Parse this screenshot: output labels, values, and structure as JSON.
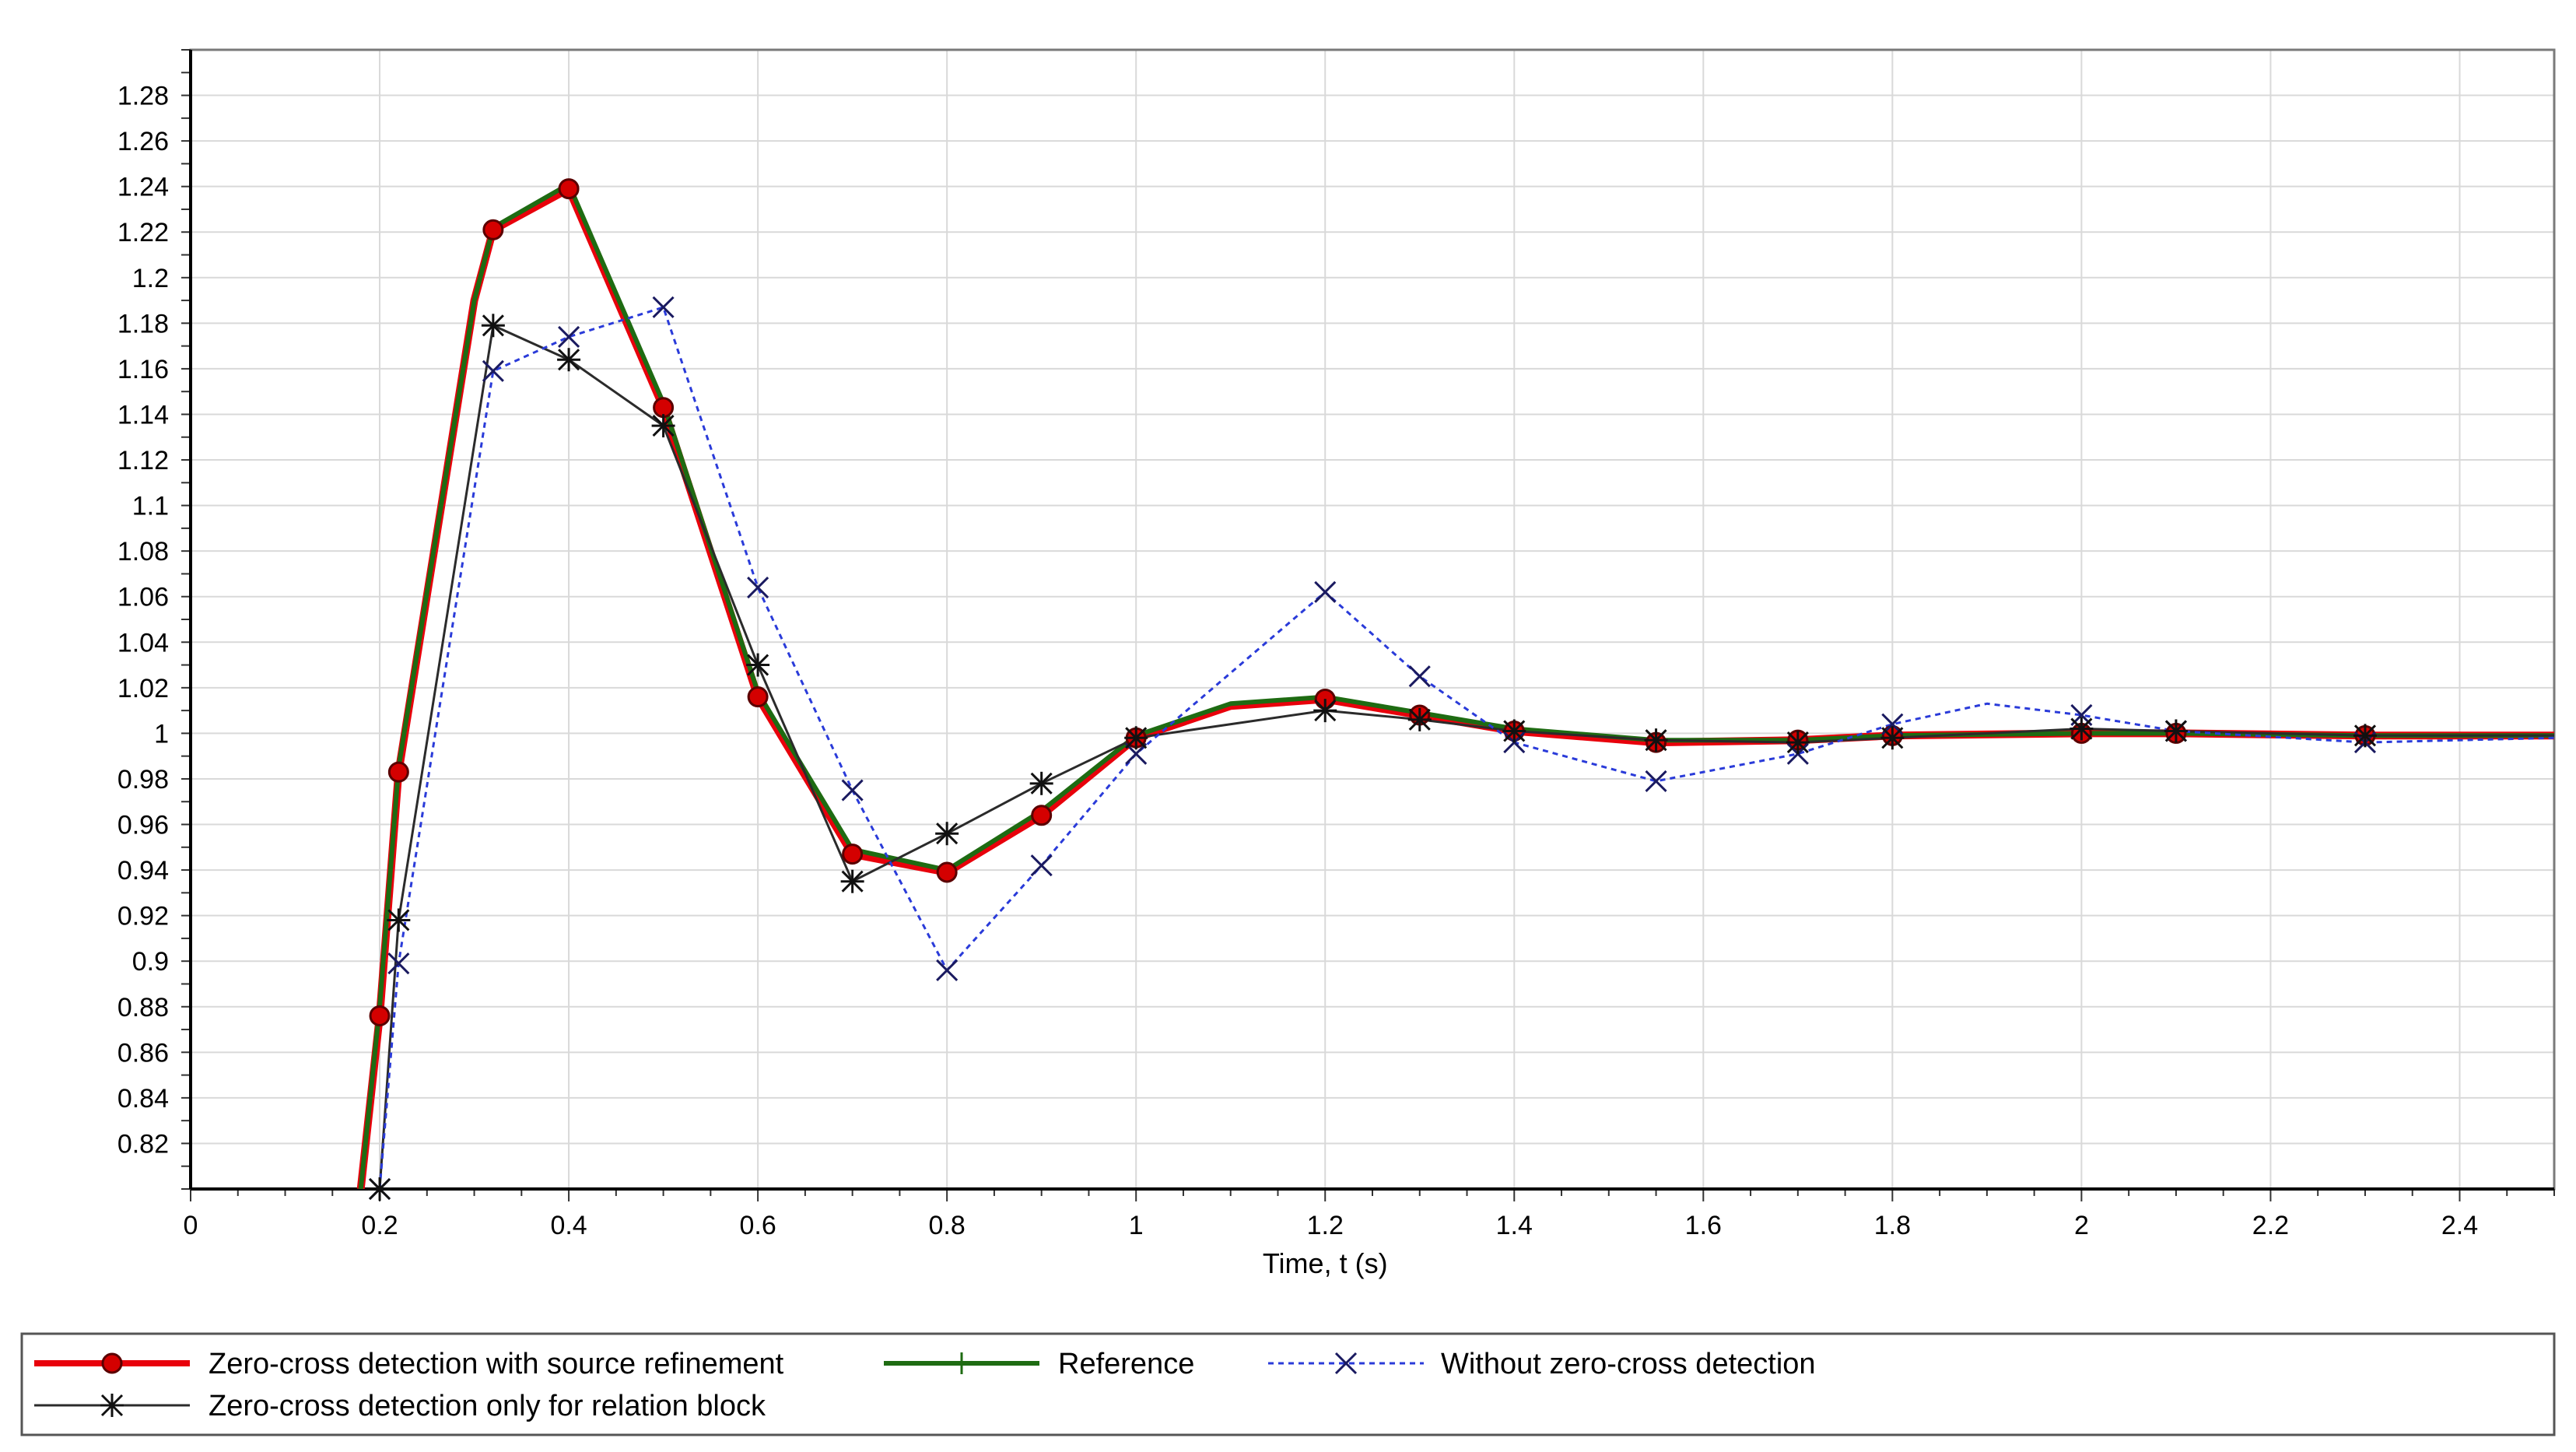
{
  "chart_data": {
    "type": "line",
    "title": "",
    "xlabel": "Time, t (s)",
    "ylabel": "",
    "xlim": [
      0,
      2.5
    ],
    "ylim": [
      0.8,
      1.3
    ],
    "xticks": [
      "0",
      "0.2",
      "0.4",
      "0.6",
      "0.8",
      "1",
      "1.2",
      "1.4",
      "1.6",
      "1.8",
      "2",
      "2.2",
      "2.4"
    ],
    "xtick_values": [
      0,
      0.2,
      0.4,
      0.6,
      0.8,
      1,
      1.2,
      1.4,
      1.6,
      1.8,
      2,
      2.2,
      2.4
    ],
    "yticks": [
      "0.82",
      "0.84",
      "0.86",
      "0.88",
      "0.9",
      "0.92",
      "0.94",
      "0.96",
      "0.98",
      "1",
      "1.02",
      "1.04",
      "1.06",
      "1.08",
      "1.1",
      "1.12",
      "1.14",
      "1.16",
      "1.18",
      "1.2",
      "1.22",
      "1.24",
      "1.26",
      "1.28"
    ],
    "ytick_values": [
      0.82,
      0.84,
      0.86,
      0.88,
      0.9,
      0.92,
      0.94,
      0.96,
      0.98,
      1,
      1.02,
      1.04,
      1.06,
      1.08,
      1.1,
      1.12,
      1.14,
      1.16,
      1.18,
      1.2,
      1.22,
      1.24,
      1.26,
      1.28
    ],
    "grid": true,
    "legend_placement": "bottom",
    "series": [
      {
        "name": "Zero-cross detection with source refinement",
        "color": "#e8000b",
        "marker": "circle",
        "dash": "solid",
        "x": [
          0.18,
          0.2,
          0.22,
          0.3,
          0.32,
          0.4,
          0.5,
          0.6,
          0.7,
          0.8,
          0.9,
          1.0,
          1.1,
          1.2,
          1.3,
          1.4,
          1.55,
          1.7,
          1.8,
          2.0,
          2.1,
          2.3,
          2.5
        ],
        "y": [
          0.8,
          0.876,
          0.983,
          1.19,
          1.221,
          1.239,
          1.143,
          1.016,
          0.947,
          0.939,
          0.964,
          0.998,
          1.012,
          1.015,
          1.008,
          1.001,
          0.996,
          0.997,
          0.999,
          1.0,
          1.0,
          0.999,
          0.999
        ],
        "marker_x": [
          0.2,
          0.22,
          0.32,
          0.4,
          0.5,
          0.6,
          0.7,
          0.8,
          0.9,
          1.0,
          1.2,
          1.3,
          1.4,
          1.55,
          1.7,
          1.8,
          2.0,
          2.1,
          2.3
        ],
        "marker_y": [
          0.876,
          0.983,
          1.221,
          1.239,
          1.143,
          1.016,
          0.947,
          0.939,
          0.964,
          0.998,
          1.015,
          1.008,
          1.001,
          0.996,
          0.997,
          0.999,
          1.0,
          1.0,
          0.999
        ]
      },
      {
        "name": "Reference",
        "color": "#1e6b12",
        "marker": "plus",
        "dash": "solid",
        "x": [
          0.18,
          0.2,
          0.22,
          0.3,
          0.32,
          0.4,
          0.5,
          0.6,
          0.7,
          0.8,
          0.9,
          1.0,
          1.1,
          1.2,
          1.3,
          1.4,
          1.55,
          1.7,
          1.8,
          2.0,
          2.1,
          2.3,
          2.5
        ],
        "y": [
          0.8,
          0.88,
          0.985,
          1.19,
          1.222,
          1.241,
          1.145,
          1.018,
          0.949,
          0.94,
          0.966,
          0.999,
          1.013,
          1.016,
          1.009,
          1.002,
          0.997,
          0.997,
          0.999,
          1.0,
          1.0,
          0.999,
          0.999
        ],
        "marker_x": [],
        "marker_y": []
      },
      {
        "name": "Without zero-cross detection",
        "color": "#2a3bd9",
        "marker": "x",
        "dash": "dotted",
        "x": [
          0.2,
          0.22,
          0.32,
          0.4,
          0.5,
          0.6,
          0.7,
          0.8,
          0.9,
          1.0,
          1.2,
          1.3,
          1.4,
          1.55,
          1.7,
          1.8,
          1.9,
          2.0,
          2.1,
          2.3,
          2.5
        ],
        "y": [
          0.8,
          0.899,
          1.159,
          1.174,
          1.187,
          1.064,
          0.975,
          0.896,
          0.942,
          0.991,
          1.062,
          1.025,
          0.996,
          0.979,
          0.991,
          1.004,
          1.013,
          1.008,
          1.001,
          0.996,
          0.998
        ],
        "marker_x": [
          0.2,
          0.22,
          0.32,
          0.4,
          0.5,
          0.6,
          0.7,
          0.8,
          0.9,
          1.0,
          1.2,
          1.3,
          1.4,
          1.55,
          1.7,
          1.8,
          2.0,
          2.1,
          2.3
        ],
        "marker_y": [
          0.8,
          0.899,
          1.159,
          1.174,
          1.187,
          1.064,
          0.975,
          0.896,
          0.942,
          0.991,
          1.062,
          1.025,
          0.996,
          0.979,
          0.991,
          1.004,
          1.008,
          1.001,
          0.996
        ]
      },
      {
        "name": "Zero-cross detection only for relation block",
        "color": "#2b2b2b",
        "marker": "asterisk",
        "dash": "solid",
        "x": [
          0.2,
          0.22,
          0.32,
          0.4,
          0.5,
          0.6,
          0.7,
          0.8,
          0.9,
          1.0,
          1.2,
          1.3,
          1.4,
          1.55,
          1.7,
          1.8,
          2.0,
          2.1,
          2.3,
          2.5
        ],
        "y": [
          0.8,
          0.918,
          1.179,
          1.164,
          1.135,
          1.03,
          0.935,
          0.956,
          0.978,
          0.998,
          1.01,
          1.006,
          1.001,
          0.997,
          0.996,
          0.998,
          1.002,
          1.001,
          0.999,
          0.999
        ],
        "marker_x": [
          0.2,
          0.22,
          0.32,
          0.4,
          0.5,
          0.6,
          0.7,
          0.8,
          0.9,
          1.0,
          1.2,
          1.3,
          1.4,
          1.55,
          1.7,
          1.8,
          2.0,
          2.1,
          2.3
        ],
        "marker_y": [
          0.8,
          0.918,
          1.179,
          1.164,
          1.135,
          1.03,
          0.935,
          0.956,
          0.978,
          0.998,
          1.01,
          1.006,
          1.001,
          0.997,
          0.996,
          0.998,
          1.002,
          1.001,
          0.999
        ]
      }
    ]
  }
}
